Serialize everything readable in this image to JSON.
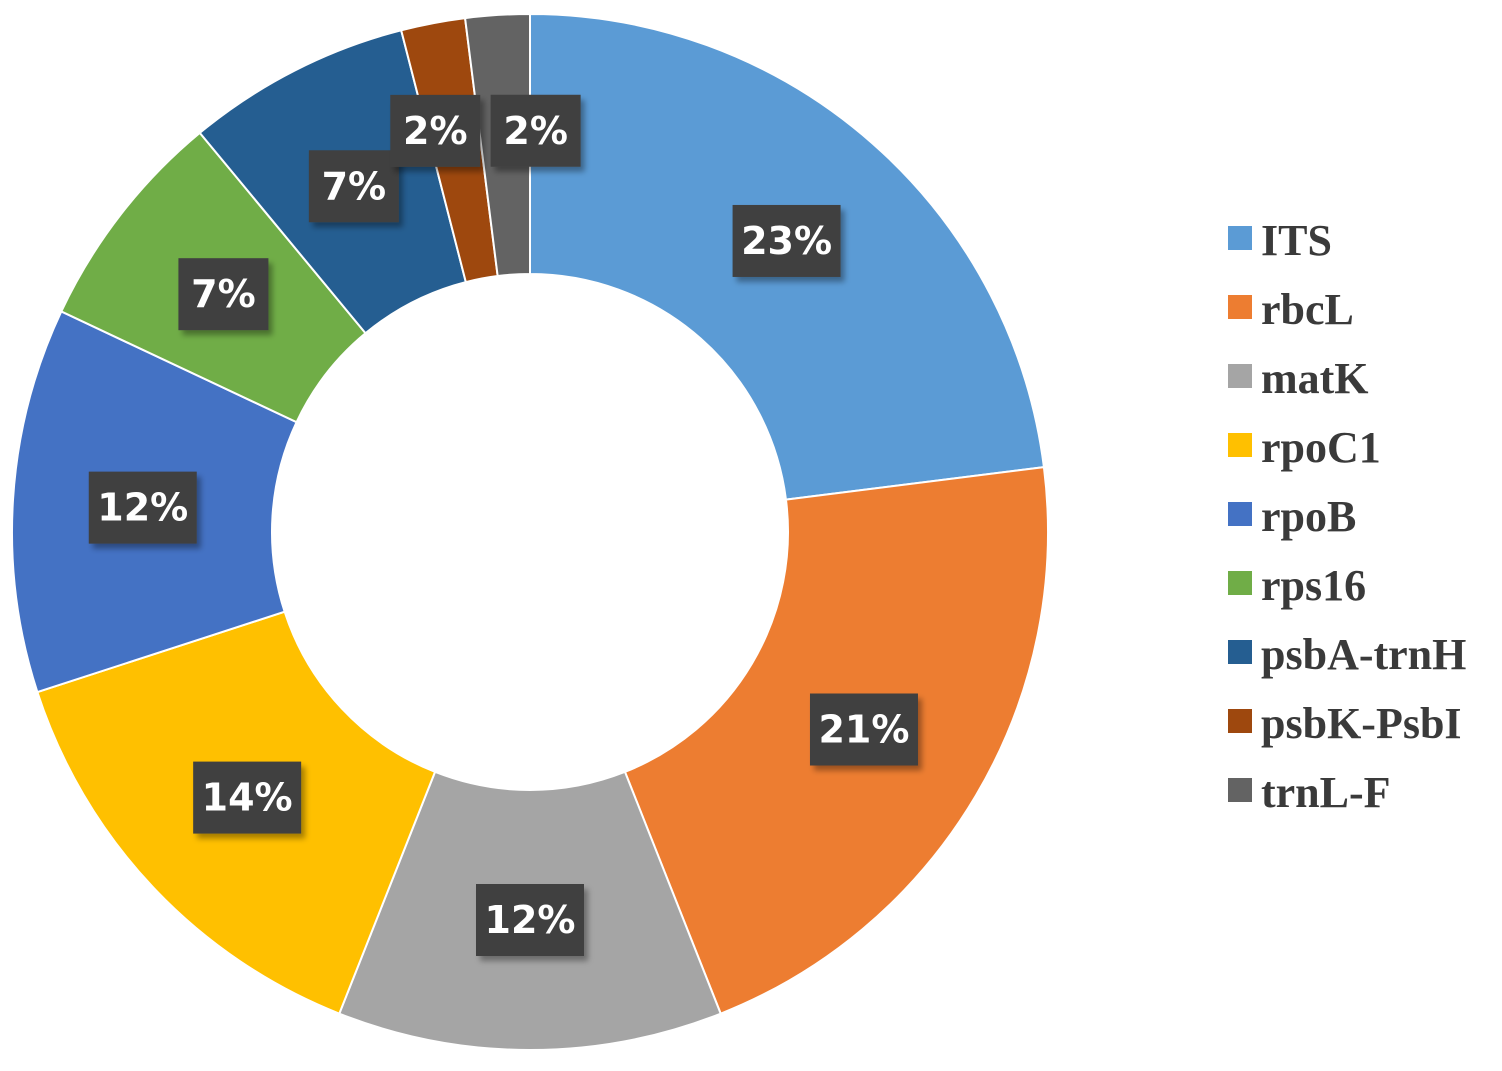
{
  "chart_data": {
    "type": "pie",
    "donut": true,
    "title": "",
    "legend_position": "right",
    "series": [
      {
        "values": [
          23,
          21,
          12,
          14,
          12,
          7,
          7,
          2,
          2
        ],
        "labels": [
          "23%",
          "21%",
          "12%",
          "14%",
          "12%",
          "7%",
          "7%",
          "2%",
          "2%"
        ]
      }
    ],
    "categories": [
      "ITS",
      "rbcL",
      "matK",
      "rpoC1",
      "rpoB",
      "rps16",
      "psbA-trnH",
      "psbK-PsbI",
      "trnL-F"
    ],
    "colors": [
      "#5b9bd5",
      "#ed7d31",
      "#a5a5a5",
      "#ffc000",
      "#4472c4",
      "#70ad47",
      "#255e91",
      "#9e480e",
      "#636363"
    ]
  }
}
